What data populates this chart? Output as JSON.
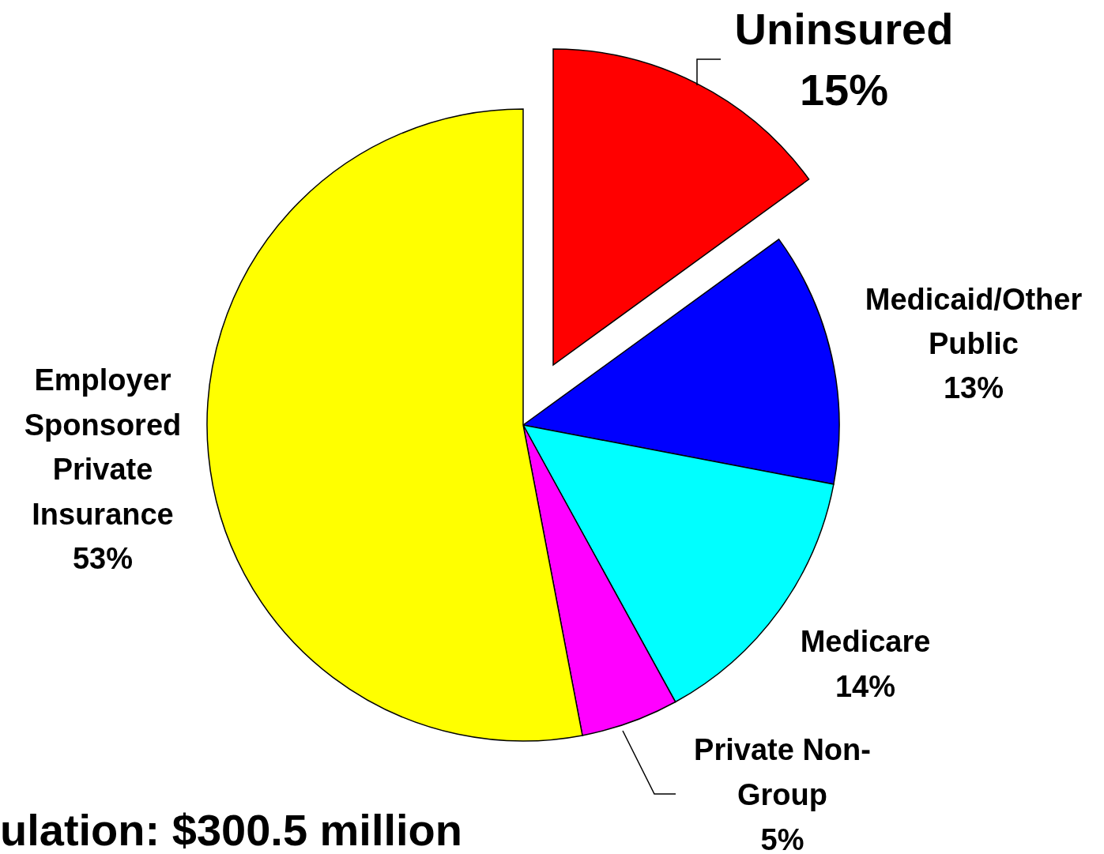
{
  "chart_data": {
    "type": "pie",
    "categories": [
      "Uninsured",
      "Medicaid/Other Public",
      "Medicare",
      "Private Non-Group",
      "Employer Sponsored Private Insurance"
    ],
    "values": [
      15,
      13,
      14,
      5,
      53
    ],
    "value_labels": [
      "15%",
      "13%",
      "14%",
      "5%",
      "53%"
    ],
    "colors": [
      "#ff0000",
      "#0000ff",
      "#00ffff",
      "#ff00ff",
      "#ffff00"
    ],
    "annotations": [
      "ulation: $300.5 million"
    ]
  }
}
